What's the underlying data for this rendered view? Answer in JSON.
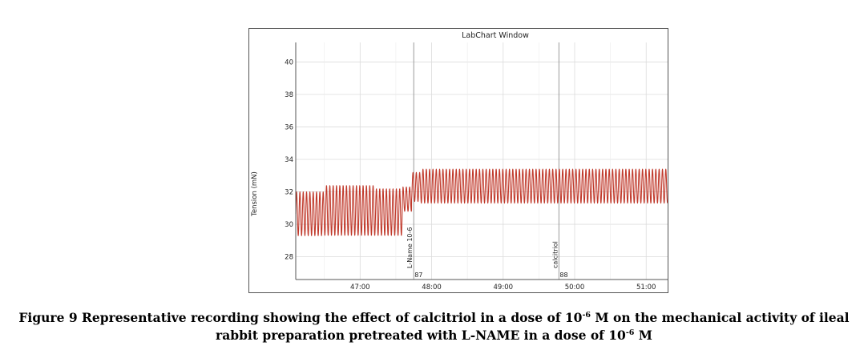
{
  "window": {
    "title": "LabChart Window"
  },
  "chart_data": {
    "type": "line",
    "title": "",
    "xlabel": "",
    "ylabel": "Tension (mN)",
    "ylim": [
      26.6,
      41.2
    ],
    "xlim": [
      46.1,
      51.3
    ],
    "yticks": [
      {
        "value": 28,
        "label": "28"
      },
      {
        "value": 30,
        "label": "30"
      },
      {
        "value": 32,
        "label": "32"
      },
      {
        "value": 34,
        "label": "34"
      },
      {
        "value": 36,
        "label": "36"
      },
      {
        "value": 38,
        "label": "38"
      },
      {
        "value": 40,
        "label": "40"
      }
    ],
    "xticks": [
      {
        "value": 47,
        "label": "47:00"
      },
      {
        "value": 48,
        "label": "48:00"
      },
      {
        "value": 49,
        "label": "49:00"
      },
      {
        "value": 50,
        "label": "50:00"
      },
      {
        "value": 51,
        "label": "51:00"
      }
    ],
    "grid": true,
    "series": [
      {
        "color": "#c0392b",
        "segments": [
          {
            "x_start": 46.1,
            "x_end": 46.5,
            "min": 29.3,
            "max": 32.0
          },
          {
            "x_start": 46.5,
            "x_end": 47.2,
            "min": 29.3,
            "max": 32.4
          },
          {
            "x_start": 47.2,
            "x_end": 47.6,
            "min": 29.3,
            "max": 32.2
          },
          {
            "x_start": 47.6,
            "x_end": 47.72,
            "min": 30.8,
            "max": 32.3
          },
          {
            "x_start": 47.72,
            "x_end": 47.85,
            "min": 31.4,
            "max": 33.2
          },
          {
            "x_start": 47.85,
            "x_end": 51.3,
            "min": 31.3,
            "max": 33.4
          }
        ],
        "cycles_per_min": 21.5
      }
    ],
    "event_markers": [
      {
        "x": 47.75,
        "label": "L-Name 10-6",
        "number": "87"
      },
      {
        "x": 49.78,
        "label": "calcitriol",
        "number": "88"
      }
    ]
  },
  "caption": {
    "line1_a": "Figure 9 Representative recording showing the effect of calcitriol in a dose of 10",
    "line1_sup": "-6",
    "line1_b": " M on the mechanical activity of ileal",
    "line2_a": "rabbit preparation pretreated with L-NAME in a dose of 10",
    "line2_sup": "-6",
    "line2_b": " M"
  }
}
